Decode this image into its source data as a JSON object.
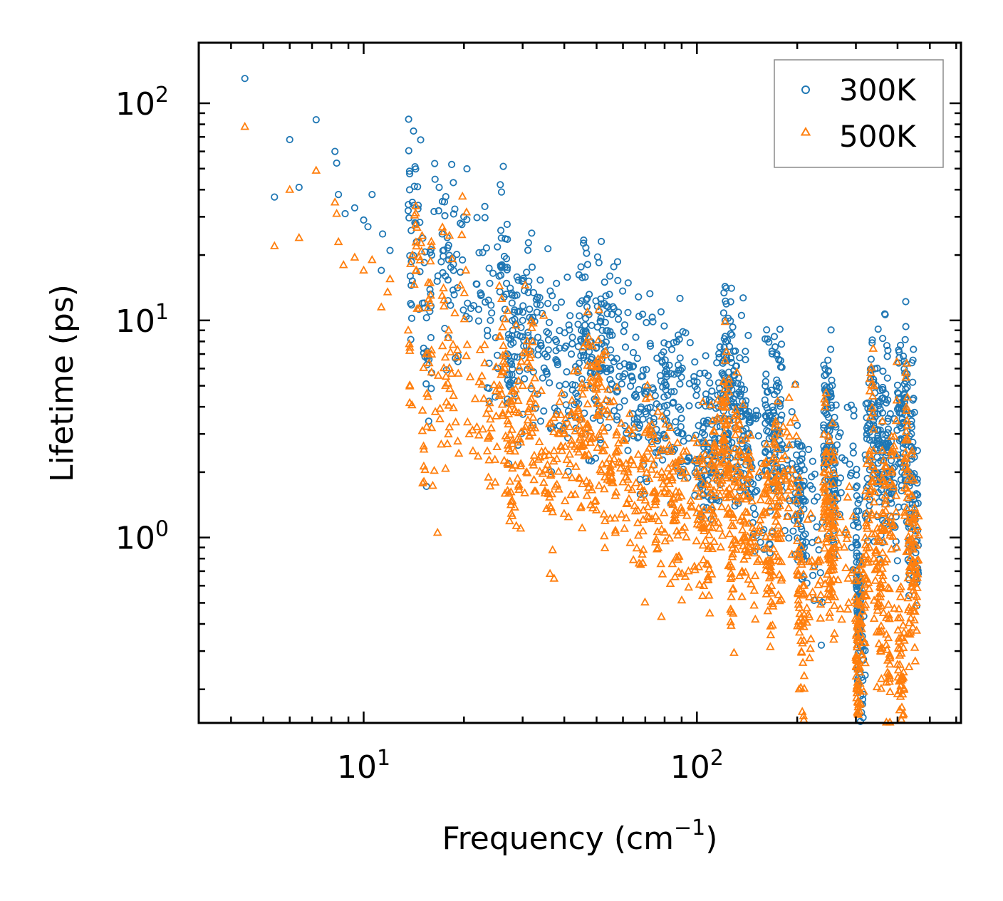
{
  "chart_data": {
    "type": "scatter",
    "xscale": "log",
    "yscale": "log",
    "xlim": [
      3.2,
      620
    ],
    "ylim": [
      0.14,
      190
    ],
    "xlabel": "Frequency (cm",
    "xlabel_sup": "−1",
    "xlabel_end": ")",
    "ylabel": "Lifetime (ps)",
    "x_ticks": [
      {
        "value": 10,
        "base": "10",
        "exp": "1"
      },
      {
        "value": 100,
        "base": "10",
        "exp": "2"
      }
    ],
    "y_ticks": [
      {
        "value": 1,
        "base": "10",
        "exp": "0"
      },
      {
        "value": 10,
        "base": "10",
        "exp": "1"
      },
      {
        "value": 100,
        "base": "10",
        "exp": "2"
      }
    ],
    "legend": {
      "position": "top-right"
    },
    "colors": {
      "s300": "#1f77b4",
      "s500": "#ff7f0e"
    },
    "series": [
      {
        "name": "300K",
        "marker": "circle",
        "color": "#1f77b4",
        "x": [
          4.4,
          5.4,
          6.0,
          6.4,
          7.2,
          8.2,
          8.3,
          8.4,
          8.8,
          9.4,
          10.0,
          10.3,
          10.6,
          11.3,
          11.4,
          12.0,
          13.6,
          13.8,
          14.0,
          14.4,
          15.0,
          15.4,
          15.8,
          16.0,
          17.2,
          17.6,
          18.0,
          18.6,
          19.5,
          20.5,
          22.2,
          23.5,
          24.0,
          25.5,
          27.0,
          28.0,
          30.0,
          32.0,
          35.0,
          38.0,
          42.0,
          45.0,
          47.0,
          50.0,
          52.0,
          55.0,
          60.0,
          65.0,
          70.0,
          75.0,
          80.0,
          85.0,
          90.0,
          100.0,
          105.0,
          110.0,
          115.0,
          120.0,
          123.0,
          126.0,
          130.0,
          135.0,
          140.0,
          145.0,
          160.0,
          165.0,
          170.0,
          175.0,
          180.0,
          200.0,
          205.0,
          210.0,
          240.0,
          245.0,
          250.0,
          255.0,
          260.0,
          300.0,
          303.0,
          306.0,
          310.0,
          320.0,
          330.0,
          340.0,
          350.0,
          360.0,
          370.0,
          380.0,
          400.0,
          410.0,
          420.0,
          430.0,
          440.0,
          450.0
        ],
        "y": [
          130,
          37,
          68,
          41,
          84,
          60,
          53,
          38,
          31,
          33,
          29,
          27,
          38,
          17,
          25,
          21,
          32,
          16,
          35,
          23,
          12,
          5.1,
          11,
          20,
          25,
          16,
          19,
          17,
          28,
          12,
          20.5,
          9,
          10,
          16,
          7,
          9,
          10,
          8,
          7,
          6.5,
          7,
          9,
          6.5,
          7.5,
          9,
          6,
          5.5,
          4.5,
          3.8,
          4.5,
          3.5,
          4.2,
          3.0,
          2.2,
          2.6,
          2.4,
          3.5,
          6.5,
          4.0,
          5.0,
          3.2,
          3.6,
          2.5,
          1.8,
          4.3,
          2.4,
          3.0,
          4.2,
          2.1,
          1.8,
          1.4,
          0.9,
          3.3,
          2.6,
          3.1,
          1.8,
          2.2,
          0.95,
          0.45,
          0.5,
          0.3,
          2.4,
          3.8,
          2.8,
          2.2,
          3.4,
          2.6,
          1.5,
          3.9,
          3.2,
          4.2,
          1.5,
          2.6,
          1.3
        ]
      },
      {
        "name": "500K",
        "marker": "triangle",
        "color": "#ff7f0e",
        "x": [
          4.4,
          5.4,
          6.0,
          6.4,
          7.2,
          8.2,
          8.3,
          8.4,
          8.7,
          9.4,
          10.0,
          10.6,
          11.3,
          11.8,
          12.0,
          13.6,
          14.0,
          14.4,
          15.0,
          15.4,
          15.8,
          16.0,
          17.2,
          17.6,
          18.0,
          18.6,
          19.5,
          20.5,
          22.2,
          23.5,
          24.0,
          25.5,
          27.0,
          28.0,
          30.0,
          32.0,
          35.0,
          38.0,
          42.0,
          45.0,
          47.0,
          50.0,
          52.0,
          55.0,
          60.0,
          65.0,
          70.0,
          75.0,
          80.0,
          85.0,
          90.0,
          100.0,
          105.0,
          110.0,
          115.0,
          120.0,
          123.0,
          126.0,
          130.0,
          135.0,
          140.0,
          145.0,
          160.0,
          165.0,
          170.0,
          175.0,
          180.0,
          200.0,
          205.0,
          210.0,
          240.0,
          245.0,
          250.0,
          255.0,
          260.0,
          300.0,
          303.0,
          306.0,
          310.0,
          320.0,
          330.0,
          340.0,
          350.0,
          360.0,
          370.0,
          380.0,
          400.0,
          410.0,
          420.0,
          430.0,
          440.0,
          450.0
        ],
        "y": [
          78,
          22,
          40,
          24,
          49,
          35,
          31,
          23,
          18,
          19.5,
          17,
          19,
          11.5,
          13.5,
          15.5,
          9,
          20,
          17,
          3.1,
          7,
          12,
          3.2,
          13,
          5,
          9,
          4.5,
          14.5,
          3.4,
          5.2,
          2.5,
          3.5,
          4.5,
          2.2,
          2.7,
          5,
          3.2,
          1.6,
          2.3,
          2.8,
          3.5,
          3.2,
          4.8,
          2.5,
          2.0,
          1.8,
          1.4,
          2.3,
          1.5,
          1.9,
          1.2,
          1.3,
          1.3,
          1.1,
          1.6,
          2.0,
          4.0,
          2.4,
          0.75,
          1.8,
          1.2,
          1.5,
          0.95,
          1.3,
          0.65,
          1.8,
          1.0,
          2.3,
          0.7,
          0.4,
          0.6,
          1.8,
          1.2,
          0.8,
          1.1,
          0.9,
          0.28,
          0.2,
          0.17,
          0.4,
          1.0,
          2.5,
          0.8,
          0.5,
          1.3,
          0.32,
          1.8,
          0.26,
          0.22,
          2.3,
          0.65,
          0.9,
          0.7
        ]
      }
    ]
  }
}
